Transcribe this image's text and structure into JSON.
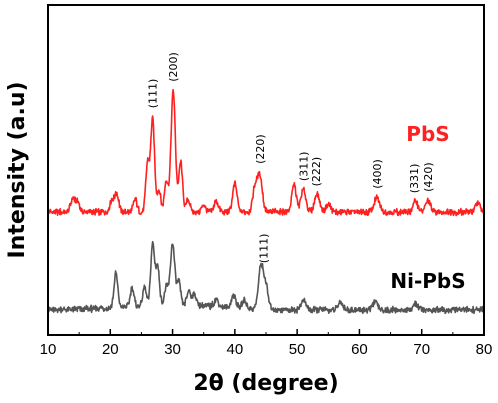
{
  "chart_data": {
    "type": "line",
    "xlabel": "2θ (degree)",
    "ylabel": "Intensity (a.u)",
    "xlim": [
      10,
      80
    ],
    "xticks": [
      "10",
      "20",
      "30",
      "40",
      "50",
      "60",
      "70",
      "80"
    ],
    "yticks_shown": false,
    "series": [
      {
        "name": "PbS",
        "color": "#ff2020",
        "baseline": 55,
        "peaks": [
          {
            "x": 14.0,
            "h": 9,
            "w": 0.35
          },
          {
            "x": 14.8,
            "h": 6,
            "w": 0.3
          },
          {
            "x": 20.2,
            "h": 7,
            "w": 0.3
          },
          {
            "x": 21.0,
            "h": 12,
            "w": 0.35
          },
          {
            "x": 24.0,
            "h": 8,
            "w": 0.3
          },
          {
            "x": 26.0,
            "h": 32,
            "w": 0.3
          },
          {
            "x": 26.8,
            "h": 60,
            "w": 0.3
          },
          {
            "x": 27.8,
            "h": 14,
            "w": 0.3
          },
          {
            "x": 29.0,
            "h": 20,
            "w": 0.3
          },
          {
            "x": 30.1,
            "h": 78,
            "w": 0.35
          },
          {
            "x": 31.3,
            "h": 32,
            "w": 0.3
          },
          {
            "x": 32.5,
            "h": 8,
            "w": 0.3
          },
          {
            "x": 35.0,
            "h": 5,
            "w": 0.3
          },
          {
            "x": 37.0,
            "h": 7,
            "w": 0.35
          },
          {
            "x": 40.0,
            "h": 18,
            "w": 0.35
          },
          {
            "x": 43.2,
            "h": 15,
            "w": 0.35
          },
          {
            "x": 44.0,
            "h": 24,
            "w": 0.4
          },
          {
            "x": 49.5,
            "h": 18,
            "w": 0.35
          },
          {
            "x": 51.0,
            "h": 14,
            "w": 0.4
          },
          {
            "x": 53.2,
            "h": 12,
            "w": 0.4
          },
          {
            "x": 55.0,
            "h": 5,
            "w": 0.4
          },
          {
            "x": 62.8,
            "h": 9,
            "w": 0.45
          },
          {
            "x": 69.0,
            "h": 7,
            "w": 0.4
          },
          {
            "x": 71.0,
            "h": 7,
            "w": 0.4
          },
          {
            "x": 79.0,
            "h": 6,
            "w": 0.35
          }
        ]
      },
      {
        "name": "Ni-PbS",
        "color": "#555555",
        "baseline": 8,
        "peaks": [
          {
            "x": 20.9,
            "h": 22,
            "w": 0.3
          },
          {
            "x": 23.5,
            "h": 12,
            "w": 0.3
          },
          {
            "x": 25.5,
            "h": 12,
            "w": 0.3
          },
          {
            "x": 26.8,
            "h": 40,
            "w": 0.3
          },
          {
            "x": 27.6,
            "h": 25,
            "w": 0.3
          },
          {
            "x": 29.0,
            "h": 12,
            "w": 0.3
          },
          {
            "x": 30.0,
            "h": 40,
            "w": 0.35
          },
          {
            "x": 31.0,
            "h": 15,
            "w": 0.3
          },
          {
            "x": 32.6,
            "h": 10,
            "w": 0.3
          },
          {
            "x": 33.5,
            "h": 8,
            "w": 0.3
          },
          {
            "x": 37.0,
            "h": 5,
            "w": 0.35
          },
          {
            "x": 39.8,
            "h": 8,
            "w": 0.35
          },
          {
            "x": 41.5,
            "h": 5,
            "w": 0.35
          },
          {
            "x": 44.2,
            "h": 28,
            "w": 0.4
          },
          {
            "x": 45.0,
            "h": 14,
            "w": 0.35
          },
          {
            "x": 51.0,
            "h": 6,
            "w": 0.4
          },
          {
            "x": 57.0,
            "h": 5,
            "w": 0.4
          },
          {
            "x": 62.5,
            "h": 5,
            "w": 0.45
          },
          {
            "x": 69.0,
            "h": 4,
            "w": 0.4
          }
        ]
      }
    ],
    "annotations": [
      {
        "text": "(111)",
        "x": 26.8,
        "series": "PbS"
      },
      {
        "text": "(200)",
        "x": 30.1,
        "series": "PbS"
      },
      {
        "text": "(220)",
        "x": 44.0,
        "series": "PbS"
      },
      {
        "text": "(311)",
        "x": 51.0,
        "series": "PbS"
      },
      {
        "text": "(222)",
        "x": 53.0,
        "series": "PbS"
      },
      {
        "text": "(400)",
        "x": 62.8,
        "series": "PbS"
      },
      {
        "text": "(331)",
        "x": 68.8,
        "series": "PbS"
      },
      {
        "text": "(420)",
        "x": 71.0,
        "series": "PbS"
      },
      {
        "text": "(111)",
        "x": 44.6,
        "series": "Ni-PbS"
      }
    ]
  }
}
